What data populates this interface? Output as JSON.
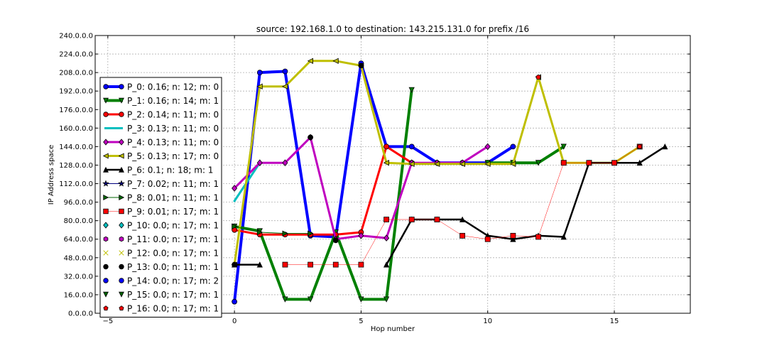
{
  "chart_data": {
    "type": "line",
    "title": "source: 192.168.1.0 to destination: 143.215.131.0 for prefix /16",
    "xlabel": "Hop number",
    "ylabel": "IP Address space",
    "xlim": [
      -5.5,
      18
    ],
    "ylim": [
      0,
      240
    ],
    "xticks": [
      -5,
      0,
      5,
      10,
      15
    ],
    "xtick_labels": [
      "−5",
      "0",
      "5",
      "10",
      "15"
    ],
    "yticks": [
      0,
      16,
      32,
      48,
      64,
      80,
      96,
      112,
      128,
      144,
      160,
      176,
      192,
      208,
      224,
      240
    ],
    "ytick_labels": [
      "0.0.0.0",
      "16.0.0.0",
      "32.0.0.0",
      "48.0.0.0",
      "64.0.0.0",
      "80.0.0.0",
      "96.0.0.0",
      "112.0.0.0",
      "128.0.0.0",
      "144.0.0.0",
      "160.0.0.0",
      "176.0.0.0",
      "192.0.0.0",
      "208.0.0.0",
      "224.0.0.0",
      "240.0.0.0"
    ],
    "grid": true,
    "legend_position": "left",
    "series": [
      {
        "name": "P_0: 0.16; n: 12; m: 0",
        "color": "#0000ff",
        "marker": "circle",
        "line_width": 4,
        "x": [
          0,
          1,
          2,
          3,
          4,
          5,
          6,
          7,
          8,
          9,
          10,
          11
        ],
        "y": [
          10,
          208,
          209,
          67,
          66,
          216,
          144,
          144,
          130,
          130,
          130,
          144
        ]
      },
      {
        "name": "P_1: 0.16; n: 14; m: 1",
        "color": "#008000",
        "marker": "triangle-down",
        "line_width": 4,
        "x": [
          0,
          1,
          2,
          3,
          4,
          5,
          6,
          7,
          8,
          9,
          10,
          11,
          12,
          13
        ],
        "y": [
          75,
          71,
          12,
          12,
          70,
          12,
          12,
          193,
          null,
          null,
          130,
          130,
          130,
          144
        ]
      },
      {
        "name": "P_2: 0.14; n: 11; m: 0",
        "color": "#ff0000",
        "marker": "circle",
        "line_width": 3,
        "x": [
          0,
          1,
          2,
          3,
          4,
          5,
          6,
          7
        ],
        "y": [
          72,
          68,
          68,
          68,
          68,
          70,
          144,
          130
        ]
      },
      {
        "name": "P_3: 0.13; n: 11; m: 0",
        "color": "#00bfbf",
        "marker": "none",
        "line_width": 3,
        "x": [
          0,
          1
        ],
        "y": [
          97,
          130
        ]
      },
      {
        "name": "P_4: 0.13; n: 11; m: 0",
        "color": "#bf00bf",
        "marker": "diamond",
        "line_width": 3,
        "x": [
          0,
          1,
          2,
          3,
          4,
          5,
          6,
          7,
          8,
          9,
          10
        ],
        "y": [
          108,
          130,
          130,
          152,
          64,
          67,
          65,
          130,
          130,
          130,
          144
        ]
      },
      {
        "name": "P_5: 0.13; n: 17; m: 0",
        "color": "#bfbf00",
        "marker": "triangle-left",
        "line_width": 3,
        "x": [
          0,
          1,
          2,
          3,
          4,
          5,
          6,
          7,
          8,
          9,
          10,
          11,
          12,
          13,
          14,
          15,
          16
        ],
        "y": [
          42,
          196,
          196,
          218,
          218,
          214,
          130,
          129,
          129,
          129,
          129,
          129,
          204,
          130,
          130,
          130,
          144
        ]
      },
      {
        "name": "P_6: 0.1; n: 18; m: 1",
        "color": "#000000",
        "marker": "triangle-up",
        "line_width": 2.5,
        "x": [
          0,
          1,
          null,
          6,
          7,
          8,
          9,
          10,
          11,
          12,
          13,
          14,
          15,
          16,
          17
        ],
        "y": [
          42,
          42,
          null,
          42,
          81,
          81,
          81,
          67,
          64,
          67,
          66,
          130,
          130,
          130,
          144
        ]
      },
      {
        "name": "P_7: 0.02; n: 11; m: 1",
        "color": "#000080",
        "marker": "star",
        "line_width": 1,
        "x": [],
        "y": []
      },
      {
        "name": "P_8: 0.01; n: 11; m: 1",
        "color": "#006400",
        "marker": "triangle-right",
        "line_width": 1,
        "x": [
          0,
          1,
          2,
          3
        ],
        "y": [
          75,
          70,
          69,
          69
        ]
      },
      {
        "name": "P_9: 0.01; n: 17; m: 1",
        "color": "#ff0000",
        "marker": "square",
        "line_width": 0.5,
        "x": [
          2,
          3,
          4,
          5,
          6,
          7,
          8,
          9,
          10,
          11,
          12,
          13,
          14,
          15,
          16
        ],
        "y": [
          42,
          42,
          42,
          42,
          81,
          81,
          81,
          67,
          64,
          67,
          66,
          130,
          130,
          130,
          144
        ]
      },
      {
        "name": "P_10: 0.0; n: 17; m: 1",
        "color": "#00bfbf",
        "marker": "diamond",
        "line_width": 0,
        "x": [],
        "y": []
      },
      {
        "name": "P_11: 0.0; n: 17; m: 1",
        "color": "#bf00bf",
        "marker": "hexagon",
        "line_width": 0,
        "x": [],
        "y": []
      },
      {
        "name": "P_12: 0.0; n: 17; m: 1",
        "color": "#bfbf00",
        "marker": "x",
        "line_width": 0,
        "x": [],
        "y": []
      },
      {
        "name": "P_13: 0.0; n: 11; m: 1",
        "color": "#000000",
        "marker": "circle",
        "line_width": 0,
        "x": [
          0,
          3,
          4,
          5
        ],
        "y": [
          42,
          152,
          63,
          214
        ]
      },
      {
        "name": "P_14: 0.0; n: 17; m: 2",
        "color": "#0000ff",
        "marker": "circle",
        "line_width": 0,
        "x": [],
        "y": []
      },
      {
        "name": "P_15: 0.0; n: 17; m: 1",
        "color": "#006400",
        "marker": "triangle-down",
        "line_width": 0,
        "x": [],
        "y": []
      },
      {
        "name": "P_16: 0.0; n: 17; m: 1",
        "color": "#ff0000",
        "marker": "pentagon",
        "line_width": 0,
        "x": [
          12,
          16
        ],
        "y": [
          204,
          144
        ]
      }
    ]
  }
}
